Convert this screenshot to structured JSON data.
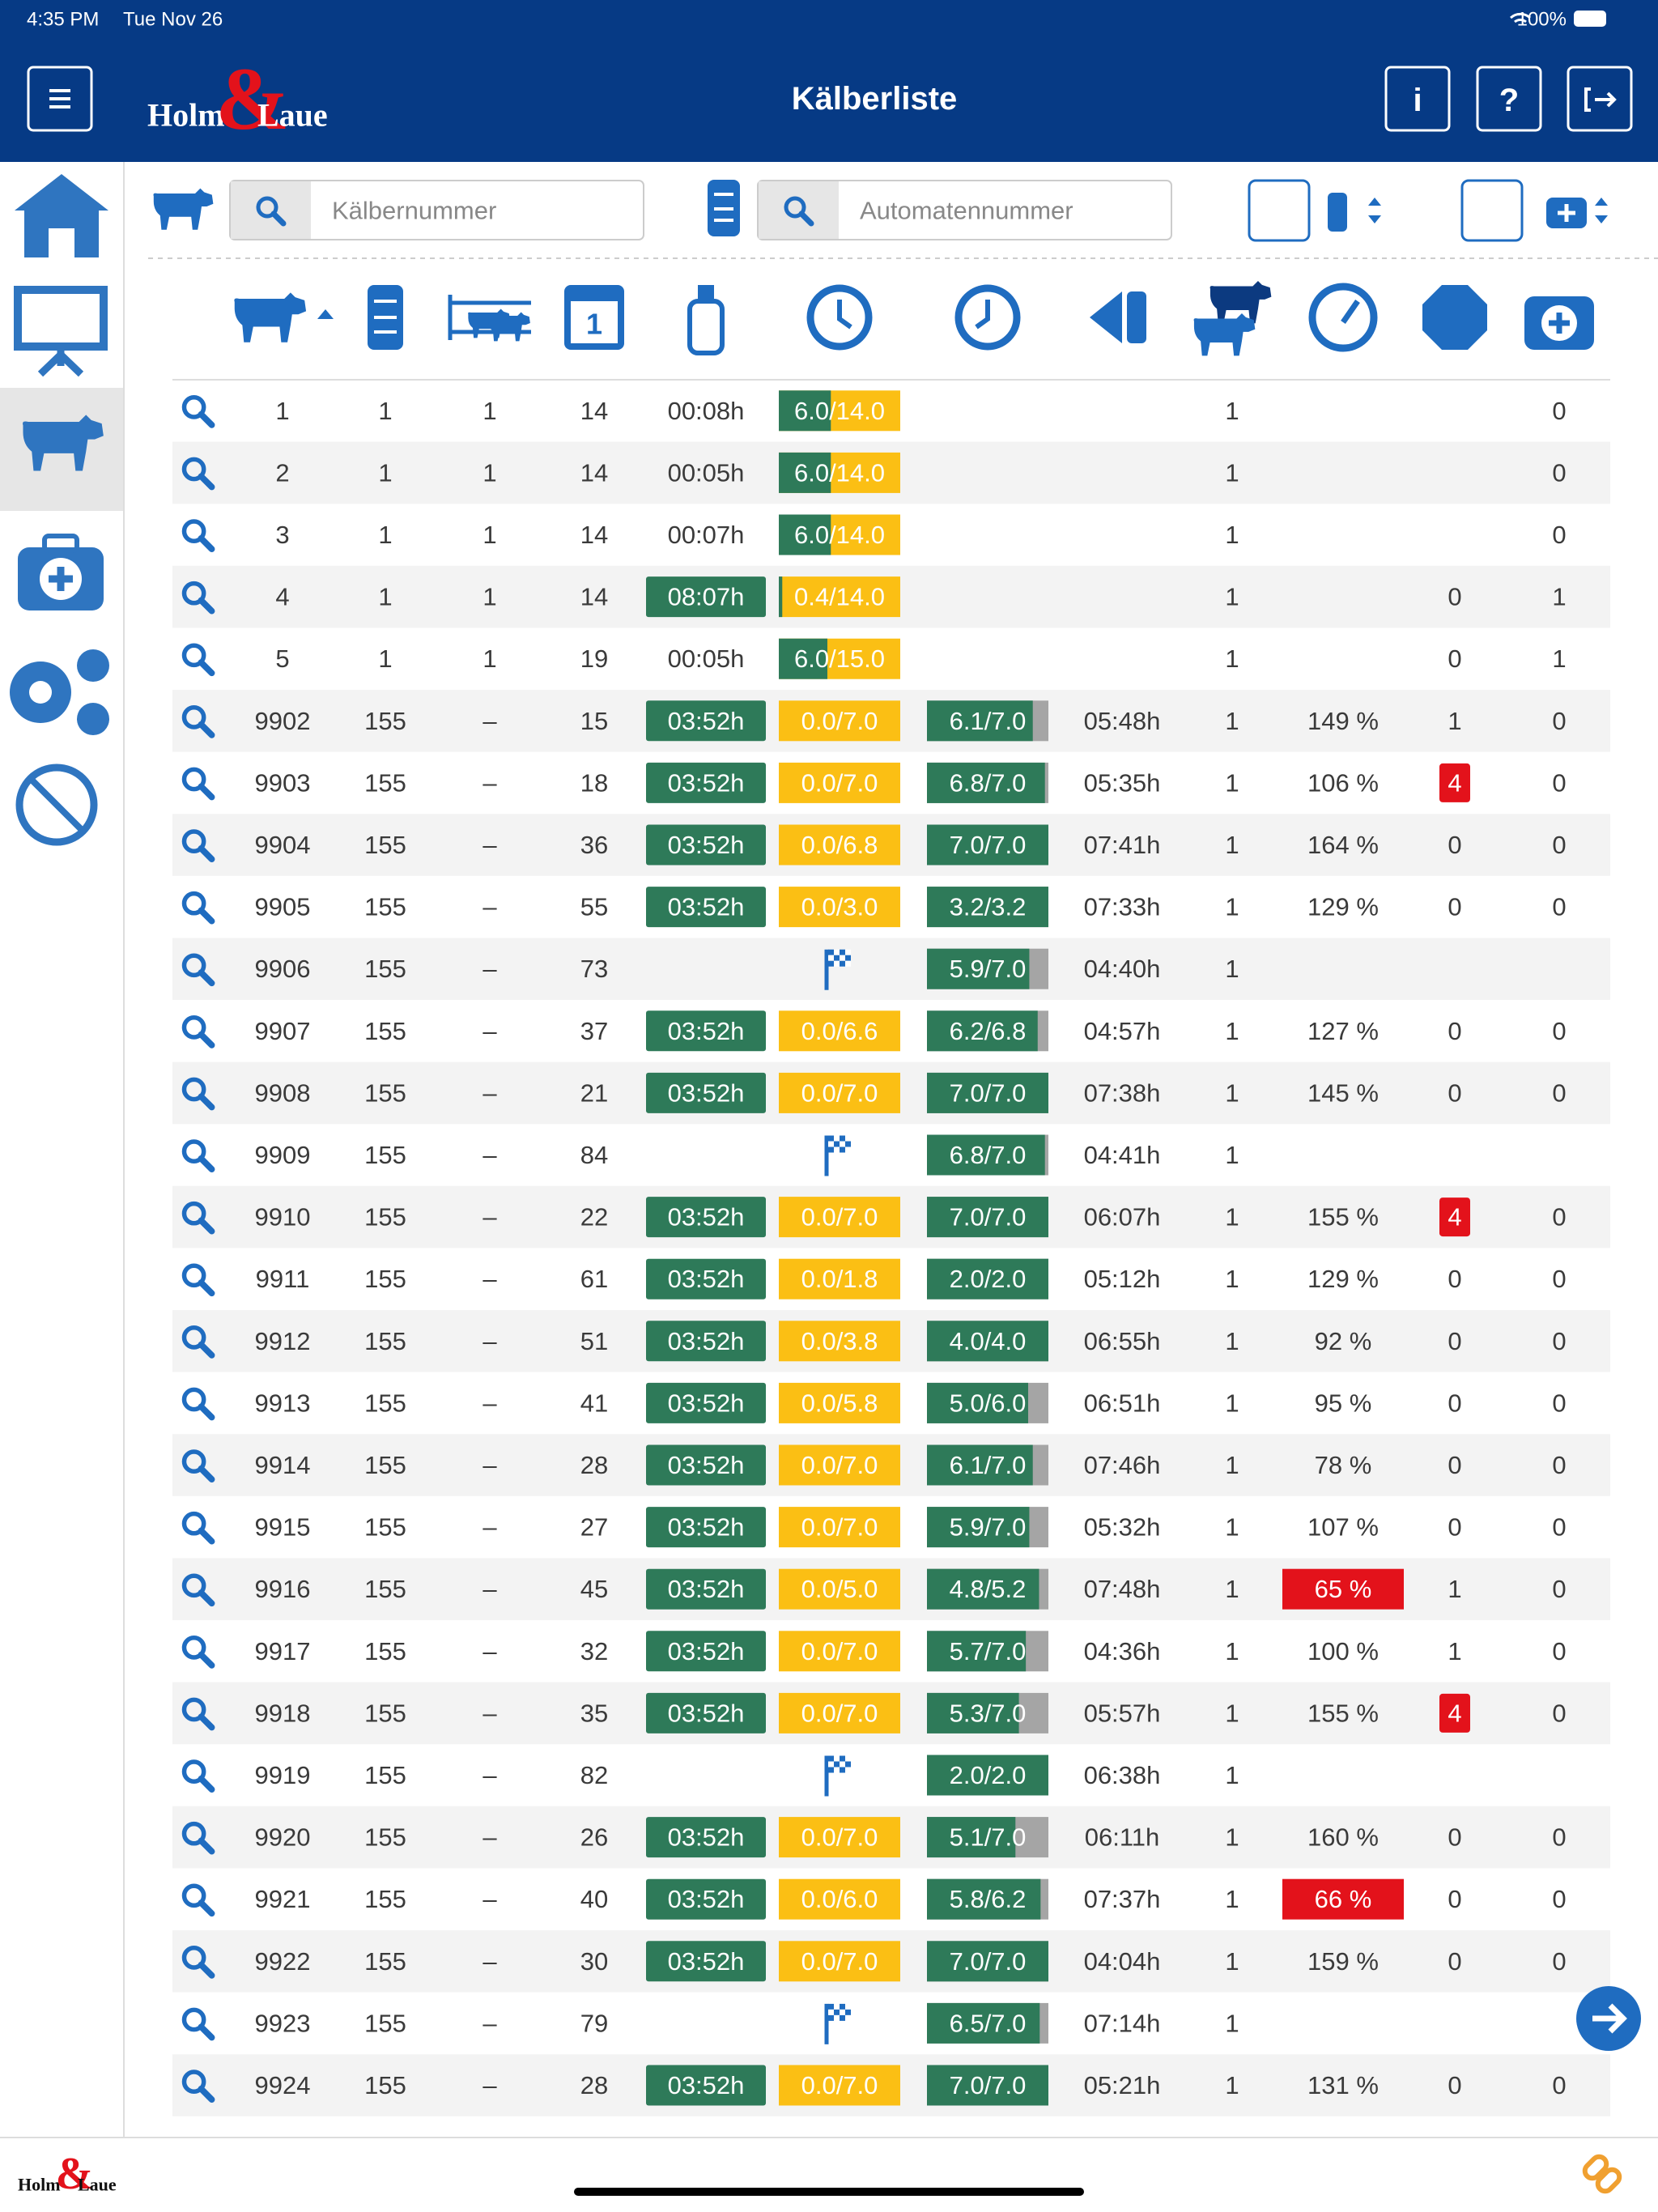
{
  "status": {
    "time": "4:35 PM",
    "date": "Tue Nov 26",
    "battery": "100%"
  },
  "header": {
    "logo": {
      "left": "Holm",
      "amp": "&",
      "right": "Laue"
    },
    "title": "Kälberliste",
    "info": "i",
    "help": "?"
  },
  "filters": {
    "calf_placeholder": "Kälbernummer",
    "automat_placeholder": "Automatennummer"
  },
  "rows": [
    {
      "n": "1",
      "group": "1",
      "pen": "1",
      "age": "14",
      "time": "00:08h",
      "time_badge": false,
      "feed": {
        "label": "6.0/14.0",
        "amount": 6.0,
        "target": 14.0
      },
      "count": "1",
      "med": "0"
    },
    {
      "n": "2",
      "group": "1",
      "pen": "1",
      "age": "14",
      "time": "00:05h",
      "time_badge": false,
      "feed": {
        "label": "6.0/14.0",
        "amount": 6.0,
        "target": 14.0
      },
      "count": "1",
      "med": "0"
    },
    {
      "n": "3",
      "group": "1",
      "pen": "1",
      "age": "14",
      "time": "00:07h",
      "time_badge": false,
      "feed": {
        "label": "6.0/14.0",
        "amount": 6.0,
        "target": 14.0
      },
      "count": "1",
      "med": "0"
    },
    {
      "n": "4",
      "group": "1",
      "pen": "1",
      "age": "14",
      "time": "08:07h",
      "time_badge": true,
      "feed": {
        "label": "0.4/14.0",
        "amount": 0.4,
        "target": 14.0
      },
      "count": "1",
      "alarm": "0",
      "alarm_alert": false,
      "med": "1"
    },
    {
      "n": "5",
      "group": "1",
      "pen": "1",
      "age": "19",
      "time": "00:05h",
      "time_badge": false,
      "feed": {
        "label": "6.0/15.0",
        "amount": 6.0,
        "target": 15.0
      },
      "count": "1",
      "alarm": "0",
      "alarm_alert": false,
      "med": "1"
    },
    {
      "n": "9902",
      "group": "155",
      "pen": "–",
      "age": "15",
      "time": "03:52h",
      "time_badge": true,
      "feed": {
        "label": "0.0/7.0",
        "amount": 0.0,
        "target": 7.0
      },
      "drunk": {
        "label": "6.1/7.0",
        "amount": 6.1,
        "target": 7.0
      },
      "last": "05:48h",
      "count": "1",
      "pct": "149 %",
      "pct_alert": false,
      "alarm": "1",
      "alarm_alert": false,
      "med": "0"
    },
    {
      "n": "9903",
      "group": "155",
      "pen": "–",
      "age": "18",
      "time": "03:52h",
      "time_badge": true,
      "feed": {
        "label": "0.0/7.0",
        "amount": 0.0,
        "target": 7.0
      },
      "drunk": {
        "label": "6.8/7.0",
        "amount": 6.8,
        "target": 7.0
      },
      "last": "05:35h",
      "count": "1",
      "pct": "106 %",
      "pct_alert": false,
      "alarm": "4",
      "alarm_alert": true,
      "med": "0"
    },
    {
      "n": "9904",
      "group": "155",
      "pen": "–",
      "age": "36",
      "time": "03:52h",
      "time_badge": true,
      "feed": {
        "label": "0.0/6.8",
        "amount": 0.0,
        "target": 6.8
      },
      "drunk": {
        "label": "7.0/7.0",
        "amount": 7.0,
        "target": 7.0
      },
      "last": "07:41h",
      "count": "1",
      "pct": "164 %",
      "pct_alert": false,
      "alarm": "0",
      "alarm_alert": false,
      "med": "0"
    },
    {
      "n": "9905",
      "group": "155",
      "pen": "–",
      "age": "55",
      "time": "03:52h",
      "time_badge": true,
      "feed": {
        "label": "0.0/3.0",
        "amount": 0.0,
        "target": 3.0
      },
      "drunk": {
        "label": "3.2/3.2",
        "amount": 3.2,
        "target": 3.2
      },
      "last": "07:33h",
      "count": "1",
      "pct": "129 %",
      "pct_alert": false,
      "alarm": "0",
      "alarm_alert": false,
      "med": "0"
    },
    {
      "n": "9906",
      "group": "155",
      "pen": "–",
      "age": "73",
      "feed_flag": true,
      "drunk": {
        "label": "5.9/7.0",
        "amount": 5.9,
        "target": 7.0
      },
      "last": "04:40h",
      "count": "1"
    },
    {
      "n": "9907",
      "group": "155",
      "pen": "–",
      "age": "37",
      "time": "03:52h",
      "time_badge": true,
      "feed": {
        "label": "0.0/6.6",
        "amount": 0.0,
        "target": 6.6
      },
      "drunk": {
        "label": "6.2/6.8",
        "amount": 6.2,
        "target": 6.8
      },
      "last": "04:57h",
      "count": "1",
      "pct": "127 %",
      "pct_alert": false,
      "alarm": "0",
      "alarm_alert": false,
      "med": "0"
    },
    {
      "n": "9908",
      "group": "155",
      "pen": "–",
      "age": "21",
      "time": "03:52h",
      "time_badge": true,
      "feed": {
        "label": "0.0/7.0",
        "amount": 0.0,
        "target": 7.0
      },
      "drunk": {
        "label": "7.0/7.0",
        "amount": 7.0,
        "target": 7.0
      },
      "last": "07:38h",
      "count": "1",
      "pct": "145 %",
      "pct_alert": false,
      "alarm": "0",
      "alarm_alert": false,
      "med": "0"
    },
    {
      "n": "9909",
      "group": "155",
      "pen": "–",
      "age": "84",
      "feed_flag": true,
      "drunk": {
        "label": "6.8/7.0",
        "amount": 6.8,
        "target": 7.0
      },
      "last": "04:41h",
      "count": "1"
    },
    {
      "n": "9910",
      "group": "155",
      "pen": "–",
      "age": "22",
      "time": "03:52h",
      "time_badge": true,
      "feed": {
        "label": "0.0/7.0",
        "amount": 0.0,
        "target": 7.0
      },
      "drunk": {
        "label": "7.0/7.0",
        "amount": 7.0,
        "target": 7.0
      },
      "last": "06:07h",
      "count": "1",
      "pct": "155 %",
      "pct_alert": false,
      "alarm": "4",
      "alarm_alert": true,
      "med": "0"
    },
    {
      "n": "9911",
      "group": "155",
      "pen": "–",
      "age": "61",
      "time": "03:52h",
      "time_badge": true,
      "feed": {
        "label": "0.0/1.8",
        "amount": 0.0,
        "target": 1.8
      },
      "drunk": {
        "label": "2.0/2.0",
        "amount": 2.0,
        "target": 2.0
      },
      "last": "05:12h",
      "count": "1",
      "pct": "129 %",
      "pct_alert": false,
      "alarm": "0",
      "alarm_alert": false,
      "med": "0"
    },
    {
      "n": "9912",
      "group": "155",
      "pen": "–",
      "age": "51",
      "time": "03:52h",
      "time_badge": true,
      "feed": {
        "label": "0.0/3.8",
        "amount": 0.0,
        "target": 3.8
      },
      "drunk": {
        "label": "4.0/4.0",
        "amount": 4.0,
        "target": 4.0
      },
      "last": "06:55h",
      "count": "1",
      "pct": "92 %",
      "pct_alert": false,
      "alarm": "0",
      "alarm_alert": false,
      "med": "0"
    },
    {
      "n": "9913",
      "group": "155",
      "pen": "–",
      "age": "41",
      "time": "03:52h",
      "time_badge": true,
      "feed": {
        "label": "0.0/5.8",
        "amount": 0.0,
        "target": 5.8
      },
      "drunk": {
        "label": "5.0/6.0",
        "amount": 5.0,
        "target": 6.0
      },
      "last": "06:51h",
      "count": "1",
      "pct": "95 %",
      "pct_alert": false,
      "alarm": "0",
      "alarm_alert": false,
      "med": "0"
    },
    {
      "n": "9914",
      "group": "155",
      "pen": "–",
      "age": "28",
      "time": "03:52h",
      "time_badge": true,
      "feed": {
        "label": "0.0/7.0",
        "amount": 0.0,
        "target": 7.0
      },
      "drunk": {
        "label": "6.1/7.0",
        "amount": 6.1,
        "target": 7.0
      },
      "last": "07:46h",
      "count": "1",
      "pct": "78 %",
      "pct_alert": false,
      "alarm": "0",
      "alarm_alert": false,
      "med": "0"
    },
    {
      "n": "9915",
      "group": "155",
      "pen": "–",
      "age": "27",
      "time": "03:52h",
      "time_badge": true,
      "feed": {
        "label": "0.0/7.0",
        "amount": 0.0,
        "target": 7.0
      },
      "drunk": {
        "label": "5.9/7.0",
        "amount": 5.9,
        "target": 7.0
      },
      "last": "05:32h",
      "count": "1",
      "pct": "107 %",
      "pct_alert": false,
      "alarm": "0",
      "alarm_alert": false,
      "med": "0"
    },
    {
      "n": "9916",
      "group": "155",
      "pen": "–",
      "age": "45",
      "time": "03:52h",
      "time_badge": true,
      "feed": {
        "label": "0.0/5.0",
        "amount": 0.0,
        "target": 5.0
      },
      "drunk": {
        "label": "4.8/5.2",
        "amount": 4.8,
        "target": 5.2
      },
      "last": "07:48h",
      "count": "1",
      "pct": "65 %",
      "pct_alert": true,
      "alarm": "1",
      "alarm_alert": false,
      "med": "0"
    },
    {
      "n": "9917",
      "group": "155",
      "pen": "–",
      "age": "32",
      "time": "03:52h",
      "time_badge": true,
      "feed": {
        "label": "0.0/7.0",
        "amount": 0.0,
        "target": 7.0
      },
      "drunk": {
        "label": "5.7/7.0",
        "amount": 5.7,
        "target": 7.0
      },
      "last": "04:36h",
      "count": "1",
      "pct": "100 %",
      "pct_alert": false,
      "alarm": "1",
      "alarm_alert": false,
      "med": "0"
    },
    {
      "n": "9918",
      "group": "155",
      "pen": "–",
      "age": "35",
      "time": "03:52h",
      "time_badge": true,
      "feed": {
        "label": "0.0/7.0",
        "amount": 0.0,
        "target": 7.0
      },
      "drunk": {
        "label": "5.3/7.0",
        "amount": 5.3,
        "target": 7.0
      },
      "last": "05:57h",
      "count": "1",
      "pct": "155 %",
      "pct_alert": false,
      "alarm": "4",
      "alarm_alert": true,
      "med": "0"
    },
    {
      "n": "9919",
      "group": "155",
      "pen": "–",
      "age": "82",
      "feed_flag": true,
      "drunk": {
        "label": "2.0/2.0",
        "amount": 2.0,
        "target": 2.0
      },
      "last": "06:38h",
      "count": "1"
    },
    {
      "n": "9920",
      "group": "155",
      "pen": "–",
      "age": "26",
      "time": "03:52h",
      "time_badge": true,
      "feed": {
        "label": "0.0/7.0",
        "amount": 0.0,
        "target": 7.0
      },
      "drunk": {
        "label": "5.1/7.0",
        "amount": 5.1,
        "target": 7.0
      },
      "last": "06:11h",
      "count": "1",
      "pct": "160 %",
      "pct_alert": false,
      "alarm": "0",
      "alarm_alert": false,
      "med": "0"
    },
    {
      "n": "9921",
      "group": "155",
      "pen": "–",
      "age": "40",
      "time": "03:52h",
      "time_badge": true,
      "feed": {
        "label": "0.0/6.0",
        "amount": 0.0,
        "target": 6.0
      },
      "drunk": {
        "label": "5.8/6.2",
        "amount": 5.8,
        "target": 6.2
      },
      "last": "07:37h",
      "count": "1",
      "pct": "66 %",
      "pct_alert": true,
      "alarm": "0",
      "alarm_alert": false,
      "med": "0"
    },
    {
      "n": "9922",
      "group": "155",
      "pen": "–",
      "age": "30",
      "time": "03:52h",
      "time_badge": true,
      "feed": {
        "label": "0.0/7.0",
        "amount": 0.0,
        "target": 7.0
      },
      "drunk": {
        "label": "7.0/7.0",
        "amount": 7.0,
        "target": 7.0
      },
      "last": "04:04h",
      "count": "1",
      "pct": "159 %",
      "pct_alert": false,
      "alarm": "0",
      "alarm_alert": false,
      "med": "0"
    },
    {
      "n": "9923",
      "group": "155",
      "pen": "–",
      "age": "79",
      "feed_flag": true,
      "drunk": {
        "label": "6.5/7.0",
        "amount": 6.5,
        "target": 7.0
      },
      "last": "07:14h",
      "count": "1"
    },
    {
      "n": "9924",
      "group": "155",
      "pen": "–",
      "age": "28",
      "time": "03:52h",
      "time_badge": true,
      "feed": {
        "label": "0.0/7.0",
        "amount": 0.0,
        "target": 7.0
      },
      "drunk": {
        "label": "7.0/7.0",
        "amount": 7.0,
        "target": 7.0
      },
      "last": "05:21h",
      "count": "1",
      "pct": "131 %",
      "pct_alert": false,
      "alarm": "0",
      "alarm_alert": false,
      "med": "0"
    }
  ]
}
